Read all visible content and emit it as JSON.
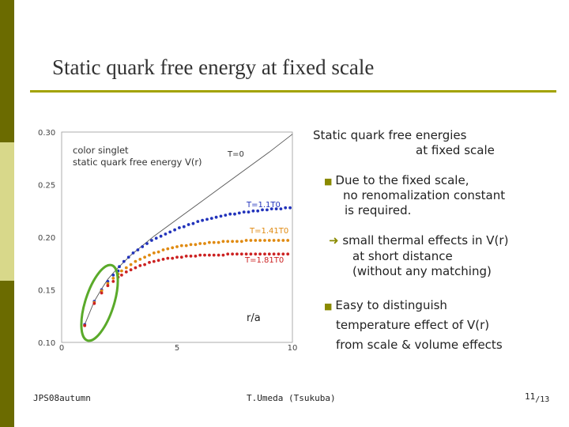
{
  "slide": {
    "title": "Static quark free energy at fixed scale",
    "footer_left": "JPS08autumn",
    "footer_center": "T.Umeda (Tsukuba)",
    "page_number": "11",
    "page_total": "/13"
  },
  "text": {
    "heading_line1": "Static quark free energies",
    "heading_line2": "at fixed scale",
    "bullet1_line1": "Due to the fixed scale,",
    "bullet1_line2": "no renomalization constant",
    "bullet1_line3": "is required.",
    "arrow_line1": "small thermal effects in V(r)",
    "arrow_line2": "at short distance",
    "arrow_line3": "(without any matching)",
    "bullet2_line1": "Easy to distinguish",
    "bullet2_line2": "temperature effect of V(r)",
    "bullet2_line3": "from scale & volume effects"
  },
  "colors": {
    "accent": "#a3a300",
    "sidebar_dark": "#6b6b00",
    "sidebar_light": "#d8d88a",
    "series_T0": "#555555",
    "series_T1": "#2233bb",
    "series_T2": "#e08a10",
    "series_T3": "#cc2222",
    "highlight_ellipse": "#5aaa2a"
  },
  "chart_data": {
    "type": "scatter",
    "xlabel": "r/a",
    "ylabel": "",
    "xlim": [
      0,
      10
    ],
    "ylim": [
      0.1,
      0.3
    ],
    "x_ticks": [
      "0",
      "5",
      "10"
    ],
    "y_ticks": [
      "0.10",
      "0.15",
      "0.20",
      "0.25",
      "0.30"
    ],
    "annotation": "color singlet\nstatic quark free energy V(r)",
    "series": [
      {
        "name": "T=0",
        "line": true,
        "x": [
          1.0,
          1.414,
          1.732,
          2.0,
          2.236,
          2.449,
          3.0,
          4.0,
          5.0,
          6.0,
          7.0,
          8.0,
          9.0,
          10.0
        ],
        "y": [
          0.117,
          0.139,
          0.151,
          0.16,
          0.166,
          0.171,
          0.183,
          0.201,
          0.217,
          0.233,
          0.249,
          0.265,
          0.281,
          0.298
        ]
      },
      {
        "name": "T=1.1T0",
        "x": [
          1.0,
          1.414,
          1.732,
          2.0,
          2.236,
          2.449,
          2.5,
          2.7,
          2.9,
          3.1,
          3.3,
          3.5,
          3.7,
          3.9,
          4.1,
          4.3,
          4.5,
          4.7,
          4.9,
          5.1,
          5.3,
          5.5,
          5.7,
          5.9,
          6.1,
          6.3,
          6.5,
          6.7,
          6.9,
          7.1,
          7.3,
          7.5,
          7.7,
          7.9,
          8.1,
          8.3,
          8.5,
          8.7,
          8.9,
          9.1,
          9.3,
          9.5,
          9.7,
          9.9
        ],
        "y": [
          0.117,
          0.139,
          0.15,
          0.158,
          0.164,
          0.168,
          0.172,
          0.177,
          0.181,
          0.185,
          0.188,
          0.191,
          0.194,
          0.197,
          0.199,
          0.201,
          0.203,
          0.205,
          0.207,
          0.209,
          0.21,
          0.212,
          0.213,
          0.215,
          0.216,
          0.217,
          0.218,
          0.219,
          0.22,
          0.221,
          0.222,
          0.222,
          0.223,
          0.224,
          0.224,
          0.225,
          0.225,
          0.226,
          0.226,
          0.227,
          0.227,
          0.227,
          0.228,
          0.228
        ]
      },
      {
        "name": "T=1.41T0",
        "x": [
          1.0,
          1.414,
          1.732,
          2.0,
          2.236,
          2.449,
          2.6,
          2.8,
          3.0,
          3.2,
          3.4,
          3.6,
          3.8,
          4.0,
          4.2,
          4.4,
          4.6,
          4.8,
          5.0,
          5.2,
          5.4,
          5.6,
          5.8,
          6.0,
          6.2,
          6.4,
          6.6,
          6.8,
          7.0,
          7.2,
          7.4,
          7.6,
          7.8,
          8.0,
          8.2,
          8.4,
          8.6,
          8.8,
          9.0,
          9.2,
          9.4,
          9.6,
          9.8
        ],
        "y": [
          0.116,
          0.138,
          0.149,
          0.156,
          0.161,
          0.165,
          0.168,
          0.171,
          0.174,
          0.177,
          0.179,
          0.181,
          0.183,
          0.185,
          0.186,
          0.188,
          0.189,
          0.19,
          0.191,
          0.192,
          0.192,
          0.193,
          0.193,
          0.194,
          0.194,
          0.195,
          0.195,
          0.195,
          0.196,
          0.196,
          0.196,
          0.196,
          0.196,
          0.197,
          0.197,
          0.197,
          0.197,
          0.197,
          0.197,
          0.197,
          0.197,
          0.197,
          0.197
        ]
      },
      {
        "name": "T=1.81T0",
        "x": [
          1.0,
          1.414,
          1.732,
          2.0,
          2.236,
          2.449,
          2.6,
          2.8,
          3.0,
          3.2,
          3.4,
          3.6,
          3.8,
          4.0,
          4.2,
          4.4,
          4.6,
          4.8,
          5.0,
          5.2,
          5.4,
          5.6,
          5.8,
          6.0,
          6.2,
          6.4,
          6.6,
          6.8,
          7.0,
          7.2,
          7.4,
          7.6,
          7.8,
          8.0,
          8.2,
          8.4,
          8.6,
          8.8,
          9.0,
          9.2,
          9.4,
          9.6,
          9.8
        ],
        "y": [
          0.116,
          0.137,
          0.147,
          0.154,
          0.158,
          0.162,
          0.164,
          0.167,
          0.169,
          0.171,
          0.173,
          0.174,
          0.176,
          0.177,
          0.178,
          0.179,
          0.18,
          0.18,
          0.181,
          0.181,
          0.182,
          0.182,
          0.182,
          0.183,
          0.183,
          0.183,
          0.183,
          0.183,
          0.183,
          0.184,
          0.184,
          0.184,
          0.184,
          0.184,
          0.184,
          0.184,
          0.184,
          0.184,
          0.184,
          0.184,
          0.184,
          0.184,
          0.184
        ]
      }
    ],
    "series_labels": [
      "T=0",
      "T=1.1T0",
      "T=1.41T0",
      "T=1.81T0"
    ]
  }
}
